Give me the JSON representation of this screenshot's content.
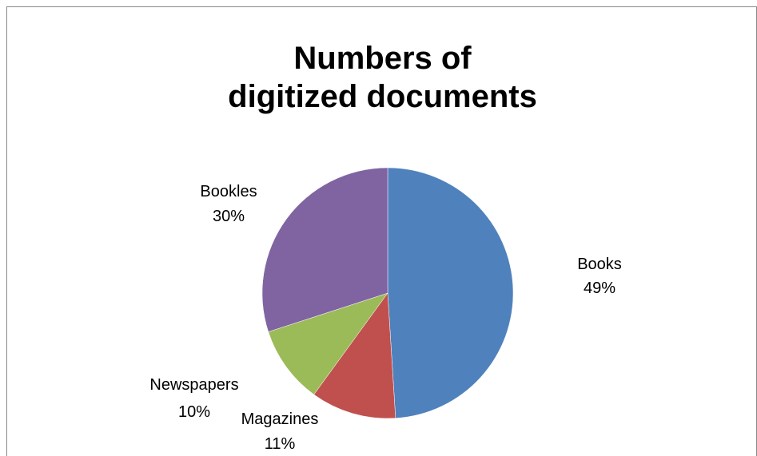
{
  "chart_data": {
    "type": "pie",
    "title": [
      "Numbers of",
      "digitized documents"
    ],
    "start_angle_deg": 0,
    "direction": "clockwise",
    "slices": [
      {
        "label": "Books",
        "value": 49,
        "percent_label": "49%",
        "color": "#4F81BD"
      },
      {
        "label": "Magazines",
        "value": 11,
        "percent_label": "11%",
        "color": "#C0504D"
      },
      {
        "label": "Newspapers",
        "value": 10,
        "percent_label": "10%",
        "color": "#9BBB59"
      },
      {
        "label": "Bookles",
        "value": 30,
        "percent_label": "30%",
        "color": "#8064A2"
      }
    ],
    "legend": "none",
    "data_labels": "outside"
  }
}
